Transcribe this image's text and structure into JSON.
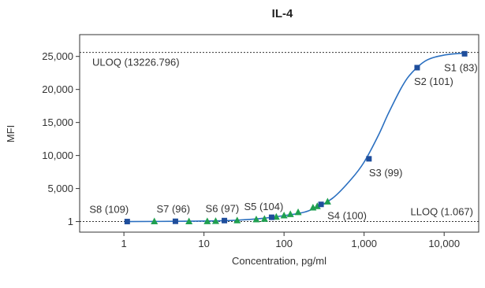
{
  "chart_data": {
    "type": "scatter",
    "title": "IL-4",
    "xlabel": "Concentration, pg/ml",
    "ylabel": "MFI",
    "x_scale": "log",
    "xlim": [
      0.28,
      27000
    ],
    "ylim": [
      -1600,
      28300
    ],
    "x_ticks": [
      {
        "value": 1,
        "label": "1"
      },
      {
        "value": 10,
        "label": "10"
      },
      {
        "value": 100,
        "label": "100"
      },
      {
        "value": 1000,
        "label": "1,000"
      },
      {
        "value": 10000,
        "label": "10,000"
      }
    ],
    "y_ticks": [
      {
        "value": 1,
        "label": "1"
      },
      {
        "value": 5000,
        "label": "5,000"
      },
      {
        "value": 10000,
        "label": "10,000"
      },
      {
        "value": 15000,
        "label": "15,000"
      },
      {
        "value": 20000,
        "label": "20,000"
      },
      {
        "value": 25000,
        "label": "25,000"
      }
    ],
    "limits": [
      {
        "label": "ULOQ (13226.796)",
        "y": 25600
      },
      {
        "label": "LLOQ (1.067)",
        "y": 1
      }
    ],
    "standards": [
      {
        "label": "S1 (83)",
        "x": 18000,
        "y": 25400
      },
      {
        "label": "S2 (101)",
        "x": 4600,
        "y": 23300
      },
      {
        "label": "S3 (99)",
        "x": 1150,
        "y": 9500
      },
      {
        "label": "S4 (100)",
        "x": 290,
        "y": 2600
      },
      {
        "label": "S5 (104)",
        "x": 70,
        "y": 650
      },
      {
        "label": "S6 (97)",
        "x": 18,
        "y": 150
      },
      {
        "label": "S7 (96)",
        "x": 4.4,
        "y": 40
      },
      {
        "label": "S8 (109)",
        "x": 1.1,
        "y": 1
      }
    ],
    "samples": {
      "x": [
        2.4,
        6.5,
        11,
        14,
        26,
        45,
        57,
        80,
        100,
        120,
        150,
        230,
        260,
        350
      ],
      "y": [
        1,
        5,
        20,
        60,
        150,
        300,
        380,
        700,
        900,
        1100,
        1400,
        2100,
        2300,
        3000
      ]
    },
    "curve": {
      "x": [
        1.1,
        5,
        20,
        50,
        100,
        200,
        400,
        700,
        1000,
        1500,
        2000,
        3000,
        4000,
        6000,
        10000,
        18000
      ],
      "y": [
        1,
        40,
        150,
        450,
        900,
        1600,
        3500,
        6500,
        9000,
        13000,
        16300,
        20500,
        22600,
        24400,
        25200,
        25500
      ]
    },
    "colors": {
      "standard": "#1f4e9c",
      "sample": "#1fa050",
      "curve": "#2a6fc0"
    }
  }
}
